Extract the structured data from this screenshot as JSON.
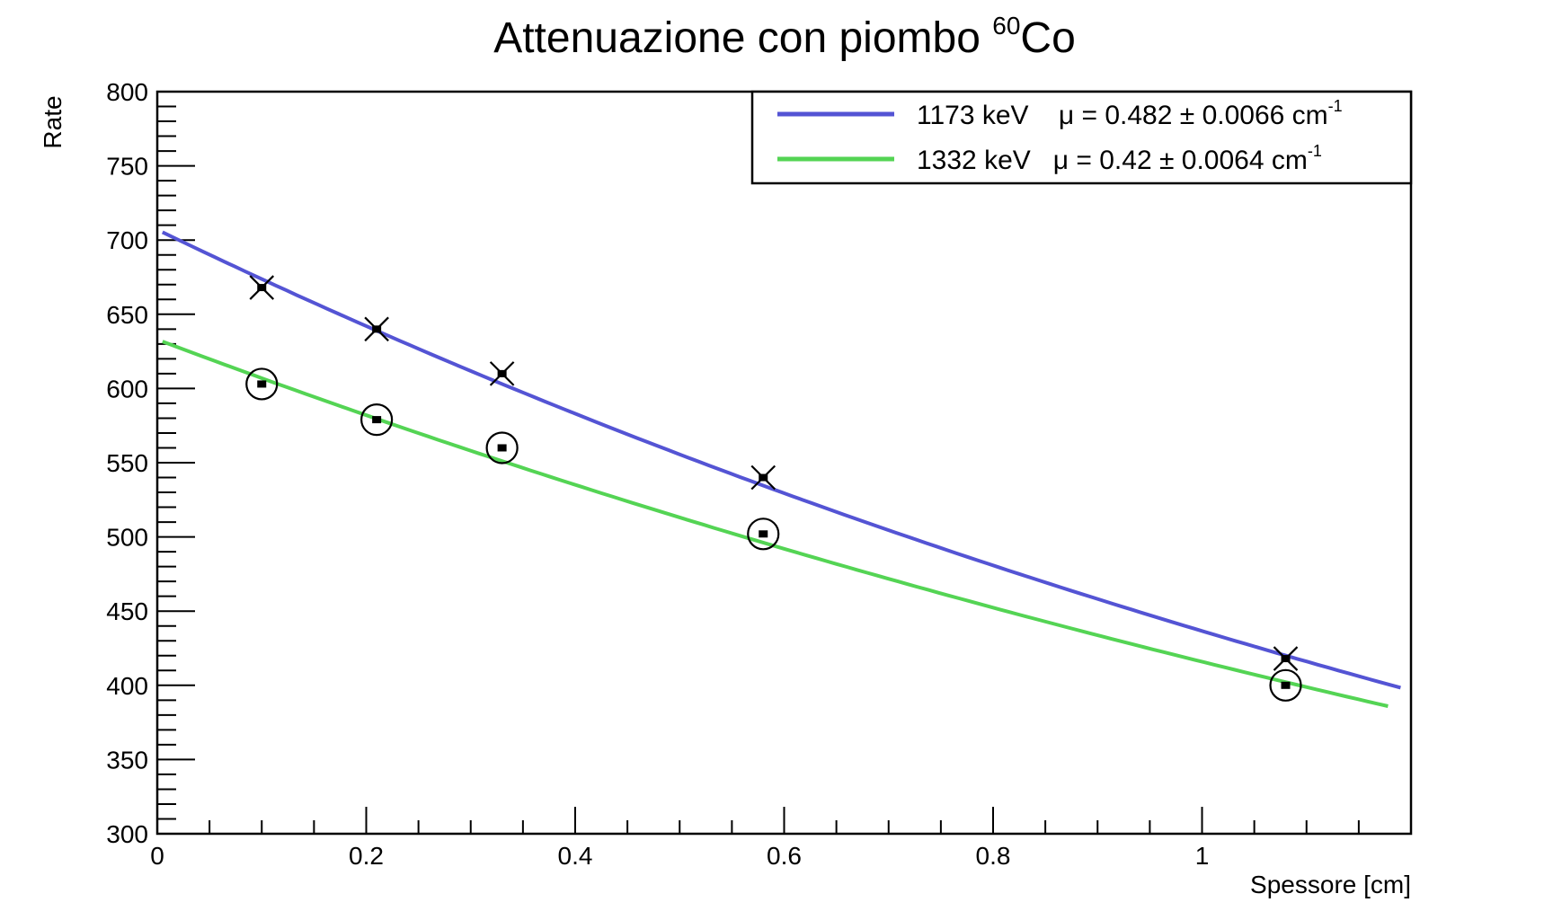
{
  "chart_data": {
    "type": "scatter",
    "title": "Attenuazione con piombo",
    "title_sup": "60",
    "title_tail": "Co",
    "xlabel": "Spessore [cm]",
    "ylabel": "Rate",
    "xlim": [
      0,
      1.2
    ],
    "ylim": [
      300,
      800
    ],
    "x_ticks": [
      "0",
      "0.2",
      "0.4",
      "0.6",
      "0.8",
      "1"
    ],
    "y_ticks": [
      "300",
      "350",
      "400",
      "450",
      "500",
      "550",
      "600",
      "650",
      "700",
      "750",
      "800"
    ],
    "legend_position": "top-right",
    "series": [
      {
        "name": "1173 keV",
        "legend_text": "1173 keV    μ = 0.482 ± 0.0066 cm",
        "legend_sup": "-1",
        "color": "#5454d4",
        "marker": "x",
        "x": [
          0.1,
          0.21,
          0.33,
          0.58,
          1.08
        ],
        "y": [
          668,
          640,
          610,
          540,
          418
        ],
        "fit": {
          "A": 707,
          "mu": 0.482,
          "xmax": 1.19
        }
      },
      {
        "name": "1332 keV",
        "legend_text": "1332 keV   μ = 0.42 ± 0.0064 cm",
        "legend_sup": "-1",
        "color": "#54d454",
        "marker": "circle",
        "x": [
          0.1,
          0.21,
          0.33,
          0.58,
          1.08
        ],
        "y": [
          603,
          579,
          560,
          502,
          400
        ],
        "fit": {
          "A": 633,
          "mu": 0.42,
          "xmax": 1.178
        }
      }
    ]
  }
}
